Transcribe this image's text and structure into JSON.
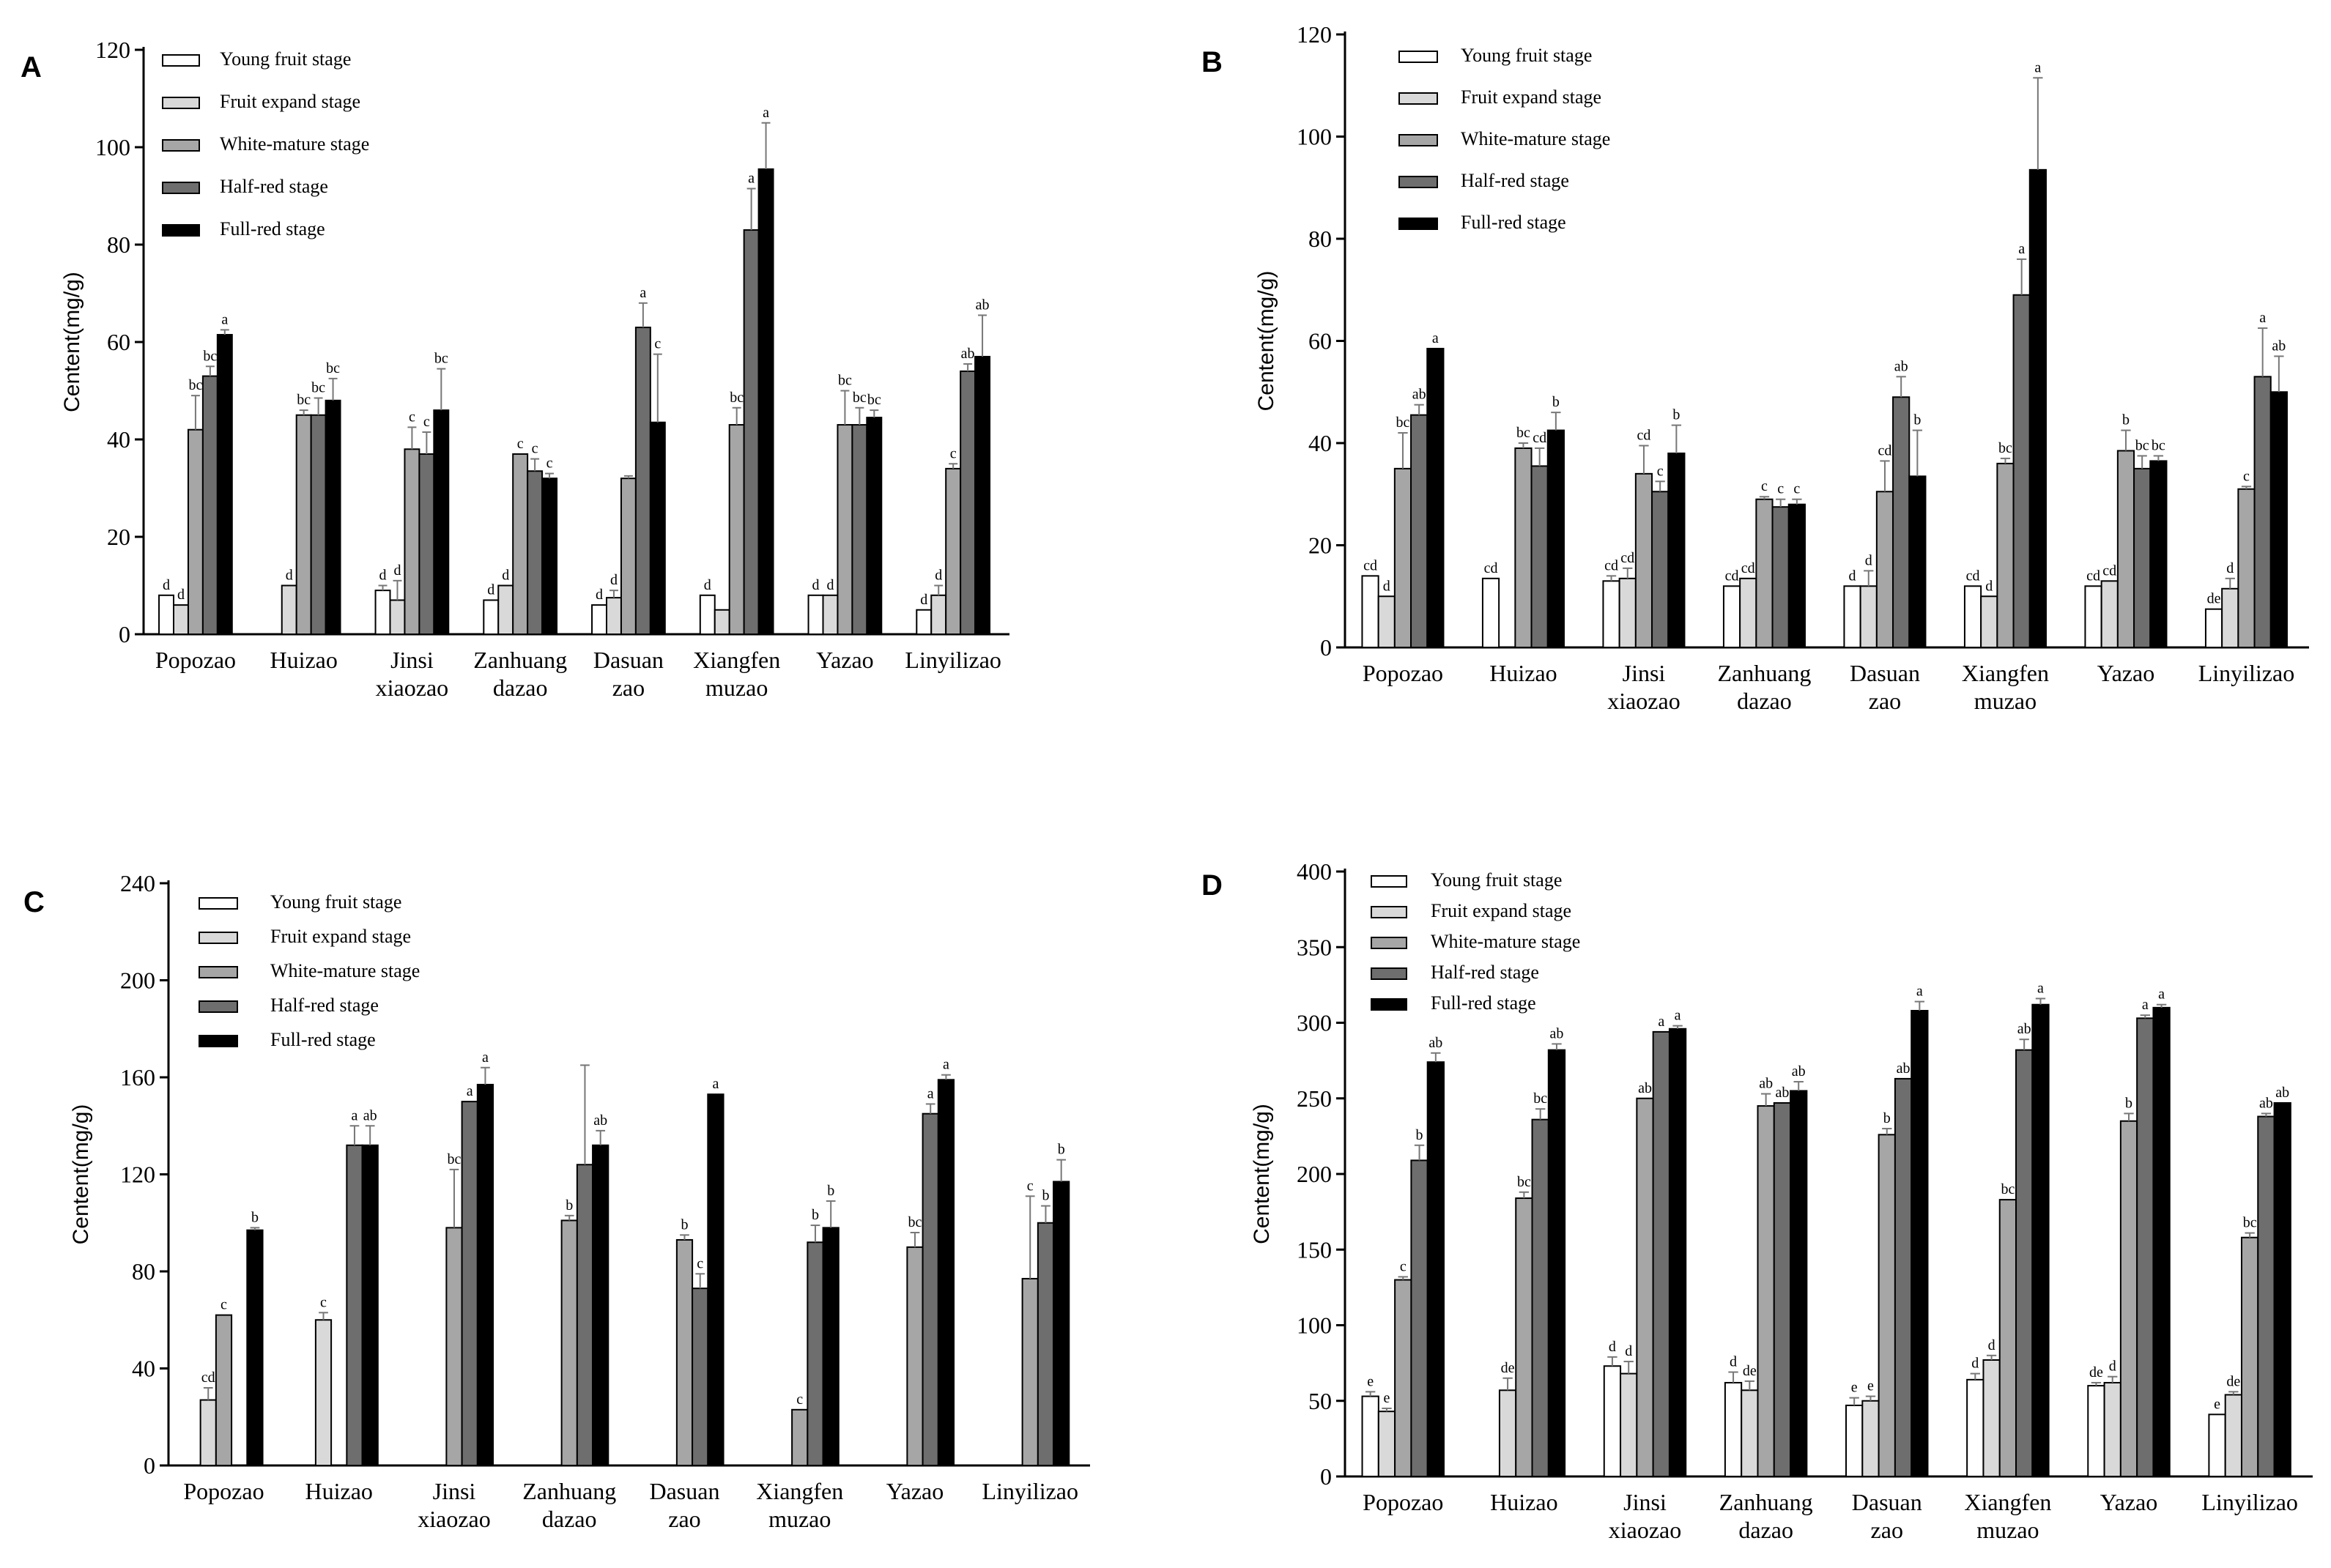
{
  "figure": {
    "panel_letters": [
      "A",
      "B",
      "C",
      "D"
    ]
  },
  "colors": {
    "stages": [
      "#ffffff",
      "#d9d9d9",
      "#a6a6a6",
      "#6e6e6e",
      "#000000"
    ],
    "edge": "#000000",
    "error_bar": "#777777"
  },
  "chart_data": [
    {
      "type": "bar",
      "panel": "A",
      "ylabel": "Centent(mg/g)",
      "ylim": [
        0,
        120
      ],
      "yticks": [
        0,
        20,
        40,
        60,
        80,
        100,
        120
      ],
      "categories": [
        "Popozao",
        "Huizao",
        "Jinsi\nxiaozao",
        "Zanhuang\ndazao",
        "Dasuan\nzao",
        "Xiangfen\nmuzao",
        "Yazao",
        "Linyilizao"
      ],
      "legend": [
        "Young fruit stage",
        "Fruit expand stage",
        "White-mature stage",
        "Half-red stage",
        "Full-red stage"
      ],
      "series": [
        {
          "name": "Young fruit stage",
          "values": [
            8,
            0,
            9,
            7,
            6,
            8,
            8,
            5
          ],
          "errors": [
            0,
            0,
            1,
            0,
            0,
            0,
            0,
            0
          ],
          "labels": [
            "d",
            "",
            "d",
            "d",
            "d",
            "d",
            "d",
            "d"
          ]
        },
        {
          "name": "Fruit expand stage",
          "values": [
            6,
            10,
            7,
            10,
            7.5,
            5,
            8,
            8
          ],
          "errors": [
            0,
            0,
            4,
            0,
            1.5,
            0,
            0,
            2
          ],
          "labels": [
            "d",
            "d",
            "d",
            "d",
            "d",
            "",
            "d",
            "d"
          ]
        },
        {
          "name": "White-mature stage",
          "values": [
            42,
            45,
            38,
            37,
            32,
            43,
            43,
            34
          ],
          "errors": [
            7,
            1,
            4.5,
            0,
            0.5,
            3.5,
            7,
            1
          ],
          "labels": [
            "bc",
            "bc",
            "c",
            "c",
            "",
            "bc",
            "bc",
            "c"
          ]
        },
        {
          "name": "Half-red stage",
          "values": [
            53,
            45,
            37,
            33.5,
            63,
            83,
            43,
            54
          ],
          "errors": [
            2,
            3.5,
            4.5,
            2.5,
            5,
            8.5,
            3.5,
            1.5
          ],
          "labels": [
            "bc",
            "bc",
            "c",
            "c",
            "a",
            "a",
            "bc",
            "ab"
          ]
        },
        {
          "name": "Full-red stage",
          "values": [
            61.5,
            48,
            46,
            32,
            43.5,
            95.5,
            44.5,
            57
          ],
          "errors": [
            1,
            4.5,
            8.5,
            1,
            14,
            9.5,
            1.5,
            8.5
          ],
          "labels": [
            "a",
            "bc",
            "bc",
            "c",
            "c",
            "a",
            "bc",
            "ab"
          ]
        }
      ]
    },
    {
      "type": "bar",
      "panel": "B",
      "ylabel": "Centent(mg/g)",
      "ylim": [
        0,
        120
      ],
      "yticks": [
        0,
        20,
        40,
        60,
        80,
        100,
        120
      ],
      "categories": [
        "Popozao",
        "Huizao",
        "Jinsi\nxiaozao",
        "Zanhuang\ndazao",
        "Dasuan\nzao",
        "Xiangfen\nmuzao",
        "Yazao",
        "Linyilizao"
      ],
      "legend": [
        "Young fruit stage",
        "Fruit expand stage",
        "White-mature stage",
        "Half-red stage",
        "Full-red stage"
      ],
      "series": [
        {
          "name": "Young fruit stage",
          "values": [
            14,
            13.5,
            13,
            12,
            12,
            12,
            12,
            7.5
          ],
          "errors": [
            0,
            0,
            1,
            0,
            0,
            0,
            0,
            0
          ],
          "labels": [
            "cd",
            "cd",
            "cd",
            "cd",
            "d",
            "cd",
            "cd",
            "de"
          ]
        },
        {
          "name": "Fruit expand stage",
          "values": [
            10,
            0,
            13.5,
            13.5,
            12,
            10,
            13,
            11.5
          ],
          "errors": [
            0,
            0,
            2,
            0,
            3,
            0,
            0,
            2
          ],
          "labels": [
            "d",
            "",
            "cd",
            "cd",
            "d",
            "d",
            "cd",
            "d"
          ]
        },
        {
          "name": "White-mature stage",
          "values": [
            35,
            39,
            34,
            29,
            30.5,
            36,
            38.5,
            31
          ],
          "errors": [
            7,
            1,
            5.5,
            0.5,
            6,
            1,
            4,
            0.5
          ],
          "labels": [
            "bc",
            "bc",
            "cd",
            "c",
            "cd",
            "bc",
            "b",
            "c"
          ]
        },
        {
          "name": "Half-red stage",
          "values": [
            45.5,
            35.5,
            30.5,
            27.5,
            49,
            69,
            35,
            53
          ],
          "errors": [
            2,
            3.5,
            2,
            1.5,
            4,
            7,
            2.5,
            9.5
          ],
          "labels": [
            "ab",
            "cd",
            "c",
            "c",
            "ab",
            "a",
            "bc",
            "a"
          ]
        },
        {
          "name": "Full-red stage",
          "values": [
            58.5,
            42.5,
            38,
            28,
            33.5,
            93.5,
            36.5,
            50
          ],
          "errors": [
            0,
            3.5,
            5.5,
            1,
            9,
            18,
            1,
            7
          ],
          "labels": [
            "a",
            "b",
            "b",
            "c",
            "b",
            "a",
            "bc",
            "ab"
          ]
        }
      ]
    },
    {
      "type": "bar",
      "panel": "C",
      "ylabel": "Centent(mg/g)",
      "ylim": [
        0,
        240
      ],
      "yticks": [
        0,
        40,
        80,
        120,
        160,
        200,
        240
      ],
      "categories": [
        "Popozao",
        "Huizao",
        "Jinsi\nxiaozao",
        "Zanhuang\ndazao",
        "Dasuan\nzao",
        "Xiangfen\nmuzao",
        "Yazao",
        "Linyilizao"
      ],
      "legend": [
        "Young fruit stage",
        "Fruit expand stage",
        "White-mature stage",
        "Half-red stage",
        "Full-red stage"
      ],
      "series": [
        {
          "name": "Young fruit stage",
          "values": [
            0,
            0,
            0,
            0,
            0,
            0,
            0,
            0
          ],
          "errors": [
            0,
            0,
            0,
            0,
            0,
            0,
            0,
            0
          ],
          "labels": [
            "",
            "",
            "",
            "",
            "",
            "",
            "",
            ""
          ]
        },
        {
          "name": "Fruit expand stage",
          "values": [
            27,
            60,
            0,
            0,
            0,
            0,
            0,
            0
          ],
          "errors": [
            5,
            3,
            0,
            0,
            0,
            0,
            0,
            0
          ],
          "labels": [
            "cd",
            "c",
            "",
            "",
            "",
            "",
            "",
            ""
          ]
        },
        {
          "name": "White-mature stage",
          "values": [
            62,
            0,
            98,
            101,
            93,
            23,
            90,
            77
          ],
          "errors": [
            0,
            0,
            24,
            2,
            2,
            0,
            6,
            34
          ],
          "labels": [
            "c",
            "",
            "bc",
            "b",
            "b",
            "c",
            "bc",
            "c"
          ]
        },
        {
          "name": "Half-red stage",
          "values": [
            0,
            132,
            150,
            124,
            73,
            92,
            145,
            100
          ],
          "errors": [
            0,
            8,
            0,
            41,
            6,
            7,
            4,
            7
          ],
          "labels": [
            "",
            "a",
            "a",
            "",
            "c",
            "b",
            "a",
            "b"
          ]
        },
        {
          "name": "Full-red stage",
          "values": [
            97,
            132,
            157,
            132,
            153,
            98,
            159,
            117
          ],
          "errors": [
            1,
            8,
            7,
            6,
            0,
            11,
            2,
            9
          ],
          "labels": [
            "b",
            "ab",
            "a",
            "ab",
            "a",
            "b",
            "a",
            "b"
          ]
        }
      ]
    },
    {
      "type": "bar",
      "panel": "D",
      "ylabel": "Centent(mg/g)",
      "ylim": [
        0,
        400
      ],
      "yticks": [
        0,
        50,
        100,
        150,
        200,
        250,
        300,
        350,
        400
      ],
      "categories": [
        "Popozao",
        "Huizao",
        "Jinsi\nxiaozao",
        "Zanhuang\ndazao",
        "Dasuan\nzao",
        "Xiangfen\nmuzao",
        "Yazao",
        "Linyilizao"
      ],
      "legend": [
        "Young fruit stage",
        "Fruit expand stage",
        "White-mature stage",
        "Half-red stage",
        "Full-red stage"
      ],
      "series": [
        {
          "name": "Young fruit stage",
          "values": [
            53,
            0,
            73,
            62,
            47,
            64,
            60,
            41
          ],
          "errors": [
            3,
            0,
            6,
            7,
            5,
            4,
            2,
            0
          ],
          "labels": [
            "e",
            "",
            "d",
            "d",
            "e",
            "d",
            "de",
            "e"
          ]
        },
        {
          "name": "Fruit expand stage",
          "values": [
            43,
            57,
            68,
            57,
            50,
            77,
            62,
            54
          ],
          "errors": [
            2,
            8,
            8,
            6,
            3,
            3,
            4,
            2
          ],
          "labels": [
            "e",
            "de",
            "d",
            "de",
            "e",
            "d",
            "d",
            "de"
          ]
        },
        {
          "name": "White-mature stage",
          "values": [
            130,
            184,
            250,
            245,
            226,
            183,
            235,
            158
          ],
          "errors": [
            2,
            4,
            0,
            8,
            4,
            0,
            5,
            3
          ],
          "labels": [
            "c",
            "bc",
            "ab",
            "ab",
            "b",
            "bc",
            "b",
            "bc"
          ]
        },
        {
          "name": "Half-red stage",
          "values": [
            209,
            236,
            294,
            247,
            263,
            282,
            303,
            238
          ],
          "errors": [
            10,
            7,
            0,
            0,
            0,
            7,
            2,
            2
          ],
          "labels": [
            "b",
            "bc",
            "a",
            "ab",
            "ab",
            "ab",
            "a",
            "ab"
          ]
        },
        {
          "name": "Full-red stage",
          "values": [
            274,
            282,
            296,
            255,
            308,
            312,
            310,
            247
          ],
          "errors": [
            6,
            4,
            2,
            6,
            6,
            4,
            2,
            0
          ],
          "labels": [
            "ab",
            "ab",
            "a",
            "ab",
            "a",
            "a",
            "a",
            "ab"
          ]
        }
      ]
    }
  ]
}
